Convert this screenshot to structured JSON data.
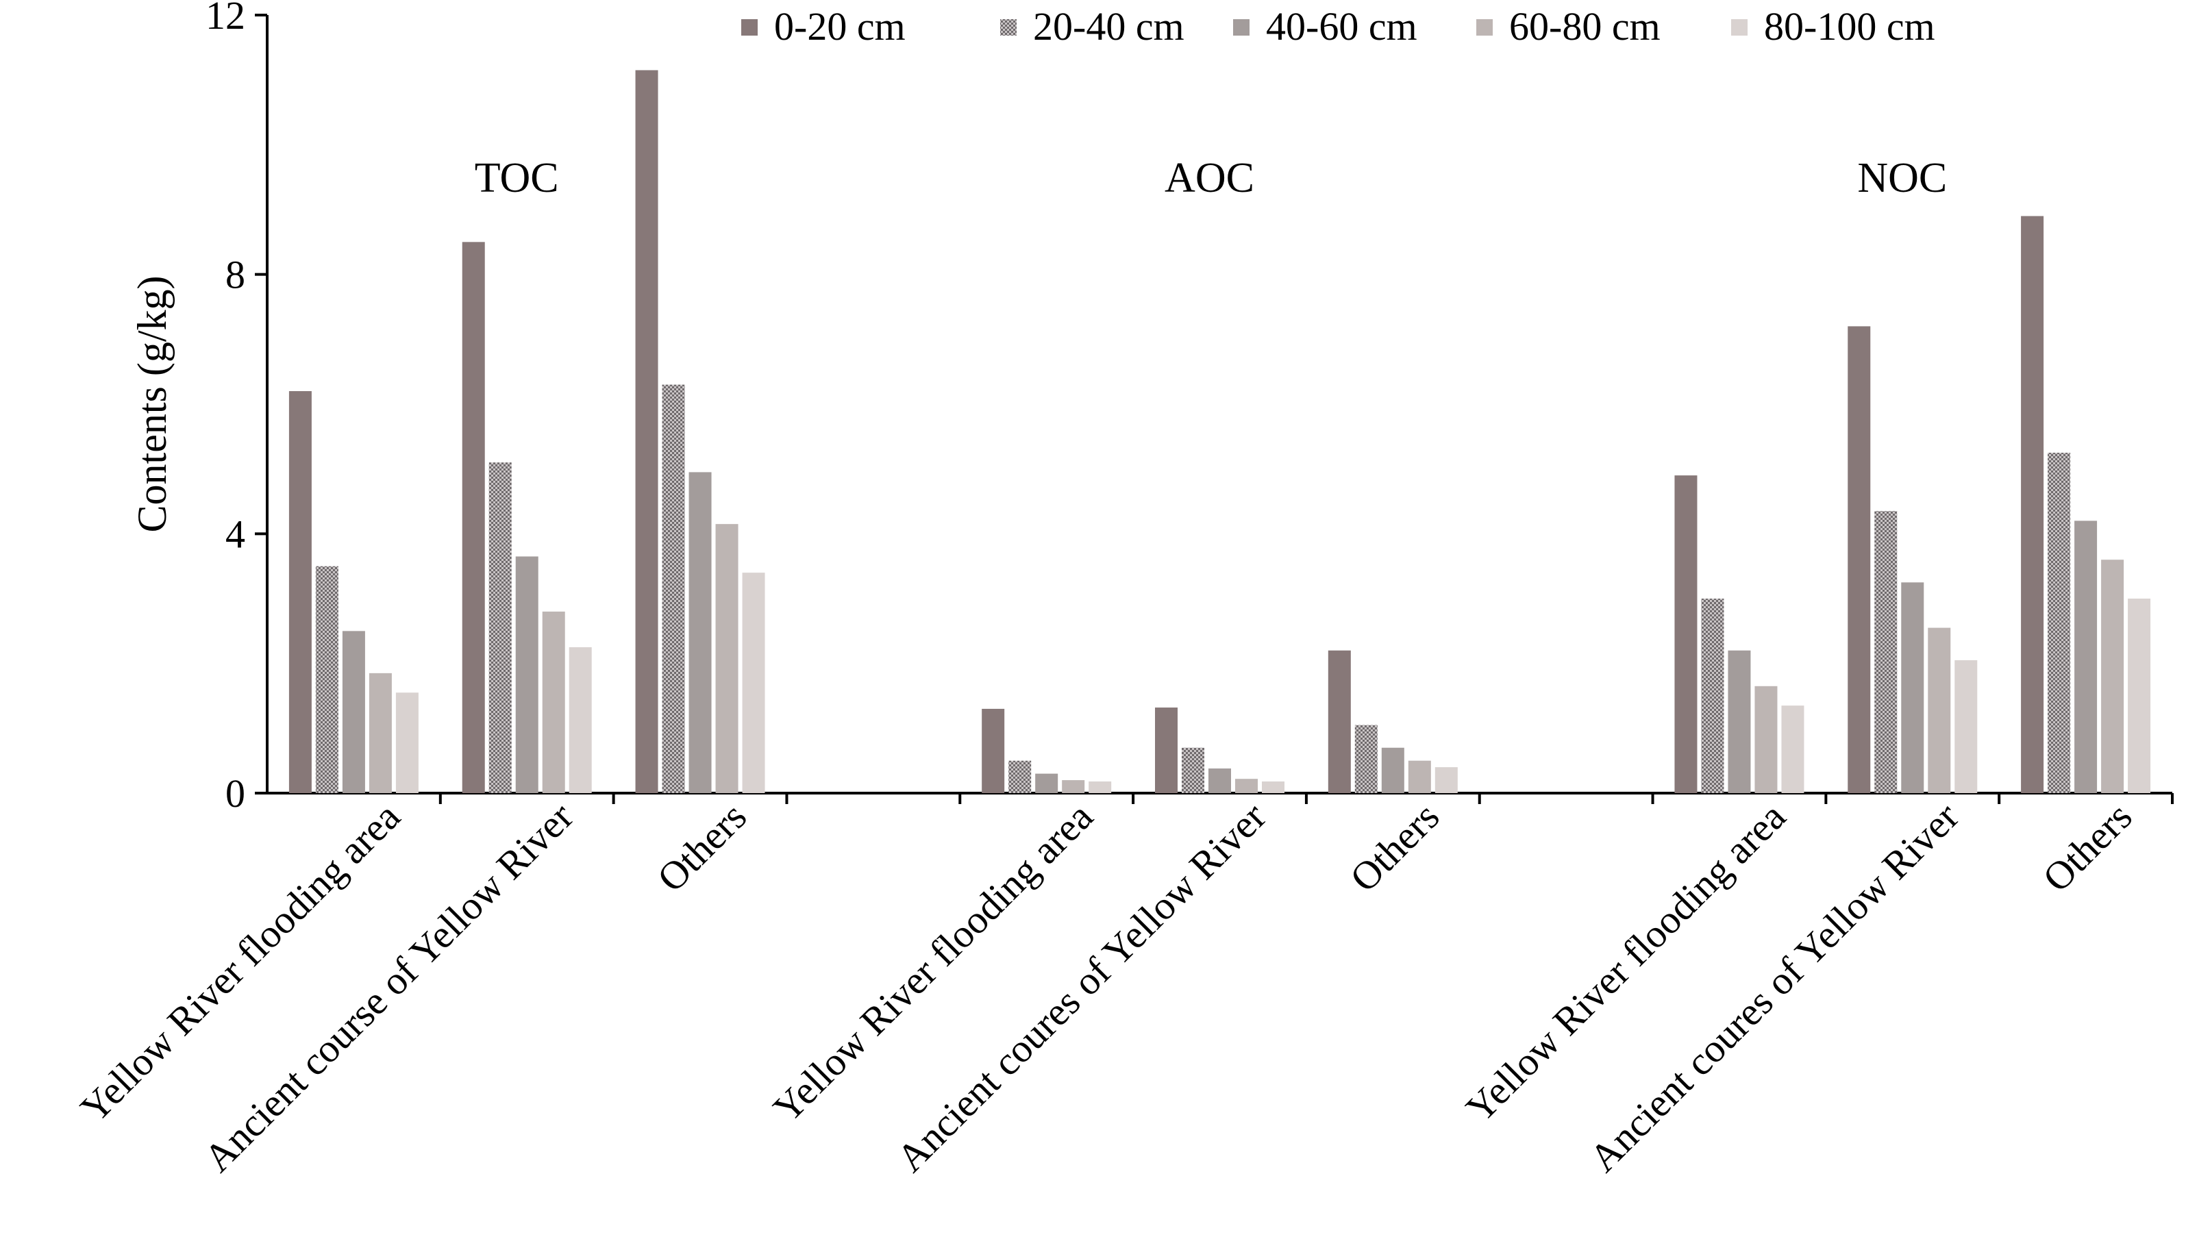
{
  "chart_data": {
    "type": "bar",
    "ylabel": "Contents (g/kg)",
    "ylim": [
      0,
      12
    ],
    "yticks": [
      0,
      4,
      8,
      12
    ],
    "grid": false,
    "legend_position": "top-right",
    "series": [
      {
        "name": "0-20 cm",
        "color": "#877878",
        "pattern": "solid"
      },
      {
        "name": "20-40 cm",
        "color": "#8a8587",
        "pattern": "dotted"
      },
      {
        "name": "40-60 cm",
        "color": "#a39c9b",
        "pattern": "solid"
      },
      {
        "name": "60-80 cm",
        "color": "#bdb5b3",
        "pattern": "solid"
      },
      {
        "name": "80-100 cm",
        "color": "#d9d2d0",
        "pattern": "solid"
      }
    ],
    "groups": [
      {
        "label": "TOC",
        "categories": [
          {
            "label": "Yellow River flooding area",
            "values": [
              6.2,
              3.5,
              2.5,
              1.85,
              1.55
            ]
          },
          {
            "label": "Ancient course of Yellow River",
            "values": [
              8.5,
              5.1,
              3.65,
              2.8,
              2.25
            ]
          },
          {
            "label": "Others",
            "values": [
              11.15,
              6.3,
              4.95,
              4.15,
              3.4
            ]
          }
        ]
      },
      {
        "label": "AOC",
        "categories": [
          {
            "label": "Yellow  River flooding area",
            "values": [
              1.3,
              0.5,
              0.3,
              0.2,
              0.18
            ]
          },
          {
            "label": "Ancient coures of Yellow  River",
            "values": [
              1.32,
              0.7,
              0.38,
              0.22,
              0.18
            ]
          },
          {
            "label": "Others",
            "values": [
              2.2,
              1.05,
              0.7,
              0.5,
              0.4
            ]
          }
        ]
      },
      {
        "label": "NOC",
        "categories": [
          {
            "label": "Yellow  River flooding area",
            "values": [
              4.9,
              3.0,
              2.2,
              1.65,
              1.35
            ]
          },
          {
            "label": "Ancient coures of Yellow  River",
            "values": [
              7.2,
              4.35,
              3.25,
              2.55,
              2.05
            ]
          },
          {
            "label": "Others",
            "values": [
              8.9,
              5.25,
              4.2,
              3.6,
              3.0
            ]
          }
        ]
      }
    ]
  }
}
